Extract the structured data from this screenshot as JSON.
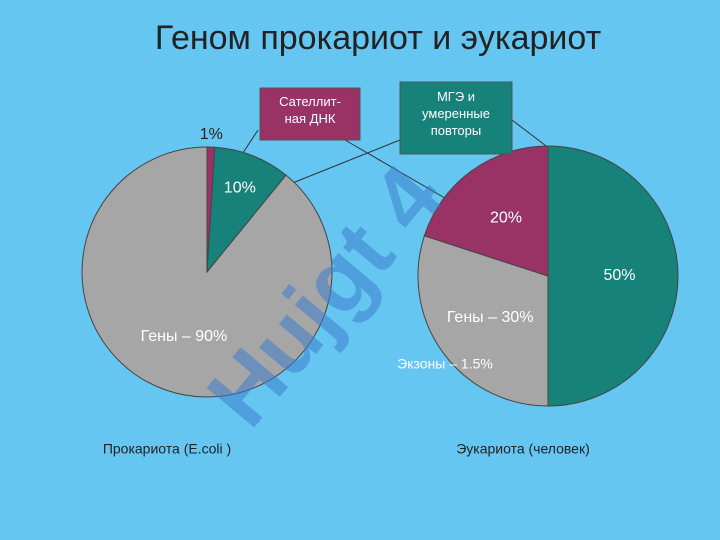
{
  "title": "Геном прокариот и эукариот",
  "watermark": "Hujgt 4",
  "callouts": [
    {
      "label": "Сателлит-\nная ДНК",
      "color": "#993366"
    },
    {
      "label": "МГЭ и\nумеренные\nповторы",
      "color": "#17827a"
    }
  ],
  "annotation": "Экзоны – 1.5%",
  "chart_data": [
    {
      "type": "pie",
      "caption": "Прокариота  (E.coli )",
      "values": [
        1,
        10,
        90
      ],
      "value_labels": [
        "1%",
        "10%",
        "Гены – 90%"
      ],
      "colors": [
        "#993366",
        "#17827a",
        "#a6a6a6"
      ]
    },
    {
      "type": "pie",
      "caption": "Эукариота  (человек)",
      "values": [
        50,
        30,
        20
      ],
      "value_labels": [
        "50%",
        "Гены – 30%",
        "20%"
      ],
      "colors": [
        "#17827a",
        "#a6a6a6",
        "#993366"
      ]
    }
  ]
}
